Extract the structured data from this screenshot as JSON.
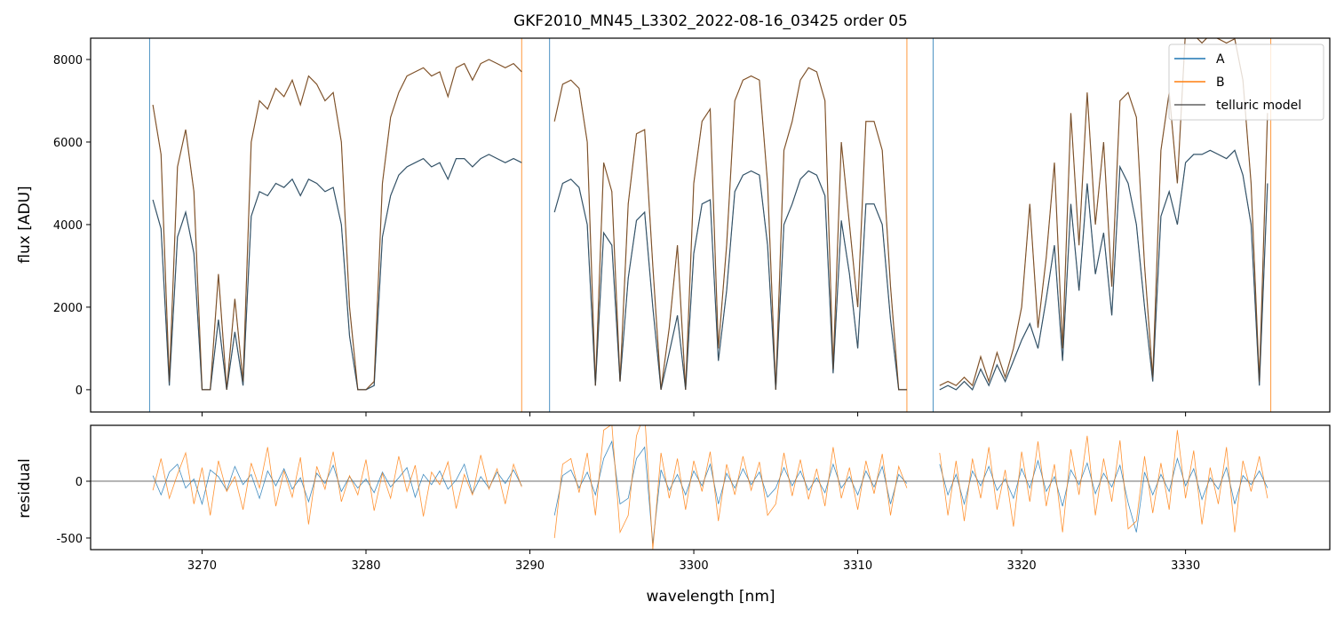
{
  "chart_data": [
    {
      "type": "line",
      "title": "GKF2010_MN45_L3302_2022-08-16_03425  order 05",
      "xlabel": "wavelength [nm]",
      "ylabel": "flux [ADU]",
      "xlim": [
        3263.2,
        3338.8
      ],
      "ylim": [
        -540,
        8516
      ],
      "xticks": [
        3270,
        3280,
        3290,
        3300,
        3310,
        3320,
        3330
      ],
      "yticks": [
        0,
        2000,
        4000,
        6000,
        8000
      ],
      "grid": false,
      "legend": {
        "placement": "top-right",
        "entries": [
          "A",
          "B",
          "telluric model"
        ]
      },
      "colors": {
        "A": "#1f77b4",
        "B": "#ff7f0e",
        "telluric model": "#3a3a3a"
      },
      "segment_edges_nm": [
        3266.8,
        3289.5,
        3291.2,
        3313.0,
        3314.6,
        3335.2
      ],
      "segments": [
        {
          "x": [
            3267.0,
            3267.5,
            3268.0,
            3268.5,
            3269.0,
            3269.5,
            3270.0,
            3270.5,
            3271.0,
            3271.5,
            3272.0,
            3272.5,
            3273.0,
            3273.5,
            3274.0,
            3274.5,
            3275.0,
            3275.5,
            3276.0,
            3276.5,
            3277.0,
            3277.5,
            3278.0,
            3278.5,
            3279.0,
            3279.5,
            3280.0,
            3280.5,
            3281.0,
            3281.5,
            3282.0,
            3282.5,
            3283.0,
            3283.5,
            3284.0,
            3284.5,
            3285.0,
            3285.5,
            3286.0,
            3286.5,
            3287.0,
            3287.5,
            3288.0,
            3288.5,
            3289.0,
            3289.5
          ],
          "A": [
            4600,
            3900,
            100,
            3700,
            4300,
            3300,
            0,
            0,
            1700,
            0,
            1400,
            100,
            4200,
            4800,
            4700,
            5000,
            4900,
            5100,
            4700,
            5100,
            5000,
            4800,
            4900,
            4000,
            1300,
            0,
            0,
            100,
            3700,
            4700,
            5200,
            5400,
            5500,
            5600,
            5400,
            5500,
            5100,
            5600,
            5600,
            5400,
            5600,
            5700,
            5600,
            5500,
            5600,
            5500
          ],
          "B": [
            6900,
            5700,
            200,
            5400,
            6300,
            4800,
            0,
            0,
            2800,
            0,
            2200,
            200,
            6000,
            7000,
            6800,
            7300,
            7100,
            7500,
            6900,
            7600,
            7400,
            7000,
            7200,
            6000,
            2000,
            0,
            0,
            200,
            5000,
            6600,
            7200,
            7600,
            7700,
            7800,
            7600,
            7700,
            7100,
            7800,
            7900,
            7500,
            7900,
            8000,
            7900,
            7800,
            7900,
            7700
          ]
        },
        {
          "x": [
            3291.5,
            3292.0,
            3292.5,
            3293.0,
            3293.5,
            3294.0,
            3294.5,
            3295.0,
            3295.5,
            3296.0,
            3296.5,
            3297.0,
            3297.5,
            3298.0,
            3298.5,
            3299.0,
            3299.5,
            3300.0,
            3300.5,
            3301.0,
            3301.5,
            3302.0,
            3302.5,
            3303.0,
            3303.5,
            3304.0,
            3304.5,
            3305.0,
            3305.5,
            3306.0,
            3306.5,
            3307.0,
            3307.5,
            3308.0,
            3308.5,
            3309.0,
            3309.5,
            3310.0,
            3310.5,
            3311.0,
            3311.5,
            3312.0,
            3312.5,
            3313.0
          ],
          "A": [
            4300,
            5000,
            5100,
            4900,
            4000,
            100,
            3800,
            3500,
            200,
            2700,
            4100,
            4300,
            2000,
            0,
            900,
            1800,
            0,
            3300,
            4500,
            4600,
            700,
            2400,
            4800,
            5200,
            5300,
            5200,
            3500,
            0,
            4000,
            4500,
            5100,
            5300,
            5200,
            4700,
            400,
            4100,
            2800,
            1000,
            4500,
            4500,
            4000,
            1700,
            0,
            0
          ],
          "B": [
            6500,
            7400,
            7500,
            7300,
            6000,
            100,
            5500,
            4800,
            200,
            4500,
            6200,
            6300,
            3000,
            0,
            1500,
            3500,
            0,
            5000,
            6500,
            6800,
            1000,
            3500,
            7000,
            7500,
            7600,
            7500,
            5000,
            0,
            5800,
            6500,
            7500,
            7800,
            7700,
            7000,
            500,
            6000,
            4000,
            2000,
            6500,
            6500,
            5800,
            2500,
            0,
            0
          ]
        },
        {
          "x": [
            3315.0,
            3315.5,
            3316.0,
            3316.5,
            3317.0,
            3317.5,
            3318.0,
            3318.5,
            3319.0,
            3319.5,
            3320.0,
            3320.5,
            3321.0,
            3321.5,
            3322.0,
            3322.5,
            3323.0,
            3323.5,
            3324.0,
            3324.5,
            3325.0,
            3325.5,
            3326.0,
            3326.5,
            3327.0,
            3327.5,
            3328.0,
            3328.5,
            3329.0,
            3329.5,
            3330.0,
            3330.5,
            3331.0,
            3331.5,
            3332.0,
            3332.5,
            3333.0,
            3333.5,
            3334.0,
            3334.5,
            3335.0
          ],
          "A": [
            0,
            100,
            0,
            200,
            0,
            500,
            100,
            600,
            200,
            700,
            1200,
            1600,
            1000,
            2200,
            3500,
            700,
            4500,
            2400,
            5000,
            2800,
            3800,
            1800,
            5400,
            5000,
            4000,
            2000,
            200,
            4200,
            4800,
            4000,
            5500,
            5700,
            5700,
            5800,
            5700,
            5600,
            5800,
            5200,
            4000,
            100,
            5000
          ],
          "B": [
            100,
            200,
            100,
            300,
            100,
            800,
            200,
            900,
            300,
            1000,
            2000,
            4500,
            1500,
            3200,
            5500,
            1000,
            6700,
            3500,
            7200,
            4000,
            6000,
            2500,
            7000,
            7200,
            6600,
            3000,
            300,
            5800,
            7200,
            5000,
            8700,
            8600,
            8400,
            8600,
            8500,
            8400,
            8500,
            7500,
            5000,
            200,
            6700
          ]
        }
      ]
    },
    {
      "type": "line",
      "xlabel": "wavelength [nm]",
      "ylabel": "residual",
      "xlim": [
        3263.2,
        3338.8
      ],
      "ylim": [
        -602,
        492
      ],
      "yticks": [
        -500,
        0
      ],
      "reference_line": 0,
      "segments": [
        {
          "A": [
            50,
            -120,
            80,
            150,
            -60,
            20,
            -200,
            100,
            40,
            -80,
            130,
            -30,
            60,
            -150,
            90,
            -40,
            110,
            -70,
            30,
            -180,
            70,
            -20,
            140,
            -90,
            40,
            -60,
            20,
            -100,
            80,
            -50,
            30,
            120,
            -140,
            60,
            -30,
            90,
            -70,
            10,
            150,
            -110,
            40,
            -60,
            80,
            -20,
            100,
            -40
          ],
          "B": [
            -80,
            200,
            -150,
            60,
            250,
            -200,
            120,
            -300,
            180,
            -90,
            40,
            -250,
            160,
            -60,
            300,
            -220,
            90,
            -140,
            210,
            -380,
            130,
            -70,
            260,
            -180,
            50,
            -120,
            190,
            -260,
            70,
            -150,
            220,
            -90,
            140,
            -310,
            80,
            -30,
            170,
            -240,
            60,
            -120,
            230,
            -70,
            110,
            -200,
            150,
            -50
          ]
        },
        {
          "A": [
            -300,
            50,
            100,
            -60,
            80,
            -120,
            200,
            350,
            -200,
            -150,
            200,
            300,
            -550,
            100,
            -80,
            60,
            -120,
            90,
            -40,
            150,
            -200,
            70,
            -60,
            110,
            -30,
            80,
            -140,
            -60,
            120,
            -40,
            90,
            -80,
            30,
            -100,
            150,
            -60,
            40,
            -120,
            90,
            -50,
            130,
            -200,
            60,
            -20
          ],
          "B": [
            -500,
            150,
            200,
            -100,
            250,
            -300,
            450,
            500,
            -450,
            -300,
            400,
            600,
            -600,
            250,
            -150,
            200,
            -250,
            180,
            -90,
            260,
            -350,
            150,
            -120,
            220,
            -80,
            170,
            -300,
            -200,
            250,
            -130,
            190,
            -160,
            110,
            -220,
            300,
            -150,
            120,
            -250,
            180,
            -110,
            240,
            -300,
            130,
            -60
          ]
        },
        {
          "A": [
            150,
            -120,
            60,
            -200,
            90,
            -40,
            130,
            -80,
            20,
            -150,
            110,
            -60,
            180,
            -90,
            40,
            -220,
            100,
            -30,
            160,
            -110,
            70,
            -50,
            140,
            -190,
            -450,
            80,
            -120,
            60,
            -90,
            200,
            -40,
            110,
            -160,
            30,
            -70,
            120,
            -200,
            50,
            -30,
            90,
            -60
          ],
          "B": [
            250,
            -300,
            180,
            -350,
            200,
            -150,
            300,
            -250,
            100,
            -400,
            260,
            -180,
            350,
            -220,
            150,
            -450,
            280,
            -120,
            400,
            -300,
            200,
            -180,
            360,
            -420,
            -350,
            220,
            -280,
            160,
            -250,
            450,
            -150,
            270,
            -380,
            120,
            -200,
            300,
            -450,
            180,
            -90,
            220,
            -150
          ]
        }
      ]
    }
  ]
}
